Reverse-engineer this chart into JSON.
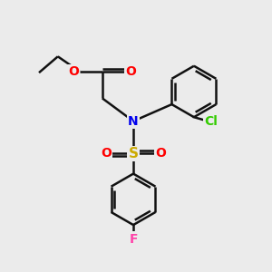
{
  "background_color": "#ebebeb",
  "atom_colors": {
    "O": "#ff0000",
    "N": "#0000ee",
    "S": "#ccaa00",
    "Cl": "#33cc00",
    "F": "#ff44aa",
    "C": "#000000"
  },
  "bond_color": "#111111",
  "bond_width": 1.8,
  "font_size_atom": 10
}
